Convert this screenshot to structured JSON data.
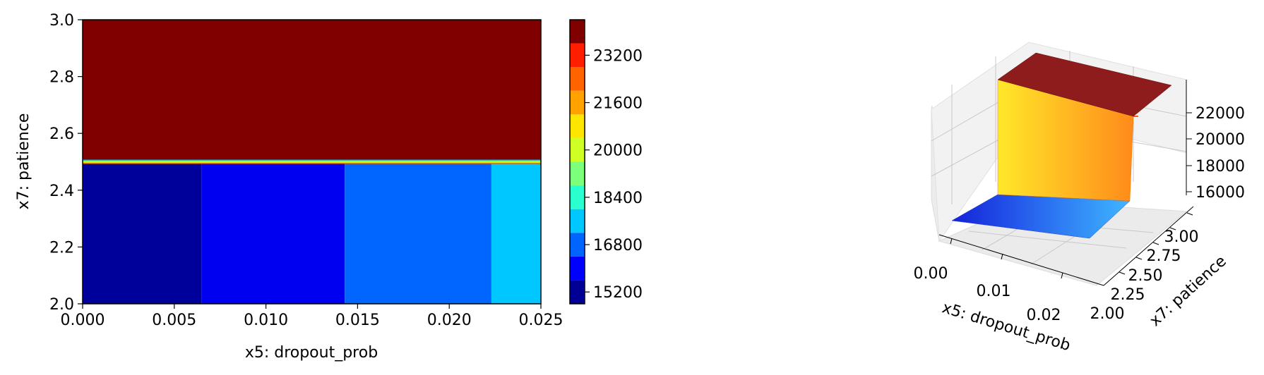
{
  "chart_data": [
    {
      "type": "heatmap",
      "subtype": "filled-contour",
      "xlabel": "x5: dropout_prob",
      "ylabel": "x7: patience",
      "xlim": [
        0.0,
        0.025
      ],
      "ylim": [
        2.0,
        3.0
      ],
      "x_ticks": [
        "0.000",
        "0.005",
        "0.010",
        "0.015",
        "0.020",
        "0.025"
      ],
      "y_ticks": [
        "2.0",
        "2.2",
        "2.4",
        "2.6",
        "2.8",
        "3.0"
      ],
      "regions": [
        {
          "x_range": [
            0.0,
            0.0065
          ],
          "y_range": [
            2.0,
            2.5
          ],
          "value": 15400,
          "color": "#00009b"
        },
        {
          "x_range": [
            0.0065,
            0.0143
          ],
          "y_range": [
            2.0,
            2.5
          ],
          "value": 16300,
          "color": "#0000f1"
        },
        {
          "x_range": [
            0.0143,
            0.0223
          ],
          "y_range": [
            2.0,
            2.5
          ],
          "value": 17400,
          "color": "#0066ff"
        },
        {
          "x_range": [
            0.0223,
            0.025
          ],
          "y_range": [
            2.0,
            2.5
          ],
          "value": 18200,
          "color": "#00c7ff"
        },
        {
          "x_range": [
            0.0,
            0.025
          ],
          "y_range": [
            2.5,
            3.0
          ],
          "value": 24000,
          "color": "#800000"
        }
      ],
      "colorbar": {
        "ticks": [
          "15200",
          "16800",
          "18400",
          "20000",
          "21600",
          "23200"
        ],
        "levels": [
          14800,
          15600,
          16400,
          17200,
          18000,
          18800,
          19600,
          20400,
          21200,
          22000,
          22800,
          23600,
          24400
        ],
        "colors": [
          "#000096",
          "#0000ff",
          "#0064ff",
          "#00c8ff",
          "#2affcf",
          "#7cff7a",
          "#d0ff26",
          "#ffe600",
          "#ffa200",
          "#ff6400",
          "#ff1f00",
          "#800000"
        ]
      }
    },
    {
      "type": "surface3d",
      "xlabel": "x5: dropout_prob",
      "ylabel": "x7: patience",
      "x_ticks": [
        "0.00",
        "0.01",
        "0.02"
      ],
      "y_ticks": [
        "2.00",
        "2.25",
        "2.50",
        "2.75",
        "3.00"
      ],
      "z_ticks": [
        "16000",
        "18000",
        "20000",
        "22000"
      ],
      "colors": {
        "low": "#1a2ae0",
        "low_end": "#3aa6ff",
        "wall": "#ffe02a",
        "wall_end": "#ff8a1a",
        "top": "#8c1a1a"
      }
    }
  ]
}
